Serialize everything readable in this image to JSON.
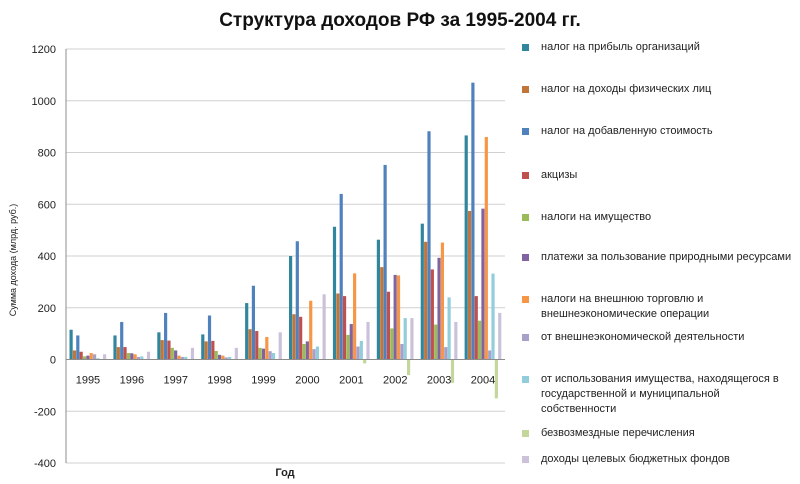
{
  "chart_data": {
    "type": "bar",
    "title": "Структура доходов РФ за 1995-2004 гг.",
    "xlabel": "Год",
    "ylabel": "Сумма дохода (млрд. руб.)",
    "ylim": [
      -400,
      1200
    ],
    "yticks": [
      -400,
      -200,
      0,
      200,
      400,
      600,
      800,
      1000,
      1200
    ],
    "grid": true,
    "legend_position": "right",
    "categories": [
      "1995",
      "1996",
      "1997",
      "1998",
      "1999",
      "2000",
      "2001",
      "2002",
      "2003",
      "2004"
    ],
    "series": [
      {
        "name": "налог на прибыль организаций",
        "color": "#31859C",
        "values": [
          115,
          93,
          105,
          97,
          218,
          400,
          513,
          463,
          525,
          866
        ]
      },
      {
        "name": "налог на доходы физических лиц",
        "color": "#C0763A",
        "values": [
          35,
          48,
          75,
          70,
          117,
          175,
          255,
          357,
          455,
          574
        ]
      },
      {
        "name": "налог на добавленную стоимость",
        "color": "#4F81BD",
        "values": [
          93,
          145,
          180,
          170,
          285,
          457,
          640,
          752,
          882,
          1070
        ]
      },
      {
        "name": "акцизы",
        "color": "#C0504D",
        "values": [
          30,
          48,
          73,
          72,
          110,
          165,
          245,
          262,
          348,
          245
        ]
      },
      {
        "name": "налоги на имущество",
        "color": "#9BBB59",
        "values": [
          12,
          25,
          45,
          33,
          45,
          60,
          95,
          120,
          135,
          150
        ]
      },
      {
        "name": "платежи за пользование природными ресурсами",
        "color": "#8064A2",
        "values": [
          15,
          24,
          35,
          18,
          42,
          70,
          137,
          327,
          393,
          583
        ]
      },
      {
        "name": "налоги на внешнюю торговлю и внешнеэкономические операции",
        "color": "#F79646",
        "values": [
          25,
          20,
          15,
          15,
          87,
          227,
          333,
          325,
          452,
          860
        ]
      },
      {
        "name": "от внешнеэкономической деятельности",
        "color": "#A9A0C9",
        "values": [
          20,
          10,
          10,
          8,
          32,
          40,
          50,
          60,
          48,
          35
        ]
      },
      {
        "name": "от использования имущества, находящегося в государственной и муниципальной собственности",
        "color": "#92CDDC",
        "values": [
          5,
          12,
          10,
          10,
          25,
          50,
          72,
          160,
          240,
          332
        ]
      },
      {
        "name": "безвозмездные перечисления",
        "color": "#C3D69B",
        "values": [
          0,
          0,
          0,
          0,
          0,
          0,
          -15,
          -60,
          -90,
          -150
        ]
      },
      {
        "name": "доходы целевых бюджетных фондов",
        "color": "#CCC1DA",
        "values": [
          20,
          30,
          45,
          45,
          105,
          252,
          145,
          160,
          145,
          180
        ]
      }
    ]
  }
}
